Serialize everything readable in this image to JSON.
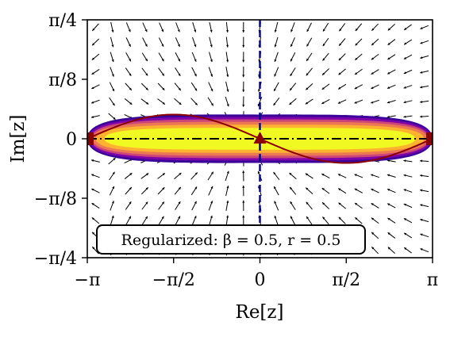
{
  "chart_data": {
    "type": "scatter",
    "title": "",
    "xlabel": "Re[z]",
    "ylabel": "Im[z]",
    "xlim": [
      -3.14159,
      3.14159
    ],
    "ylim": [
      -0.7854,
      0.7854
    ],
    "x_ticks": [
      {
        "value": -3.14159,
        "label": "−π"
      },
      {
        "value": -1.5708,
        "label": "−π/2"
      },
      {
        "value": 0,
        "label": "0"
      },
      {
        "value": 1.5708,
        "label": "π/2"
      },
      {
        "value": 3.14159,
        "label": "π"
      }
    ],
    "y_ticks": [
      {
        "value": 0.7854,
        "label": "π/4"
      },
      {
        "value": 0.3927,
        "label": "π/8"
      },
      {
        "value": 0,
        "label": "0"
      },
      {
        "value": -0.3927,
        "label": "−π/8"
      },
      {
        "value": -0.7854,
        "label": "−π/4"
      }
    ],
    "annotation": "Regularized: β = 0.5, r = 0.5",
    "density": {
      "description_colormap": "plasma",
      "center": [
        0,
        0
      ],
      "half_width_re": 3.14159,
      "half_height_im": 0.16,
      "colors": [
        "#f0f921",
        "#fdb32f",
        "#ed7953",
        "#cc4778",
        "#7e03a8",
        "#3a049a"
      ]
    },
    "sine_curve": {
      "amplitude": 0.16,
      "color": "#8b0000",
      "x_start": -3.14159,
      "x_end": 3.14159
    },
    "markers": [
      {
        "x": -3.14159,
        "y": 0,
        "shape": "square",
        "color": "#8b0000"
      },
      {
        "x": 0,
        "y": 0,
        "shape": "triangle",
        "color": "#8b0000"
      },
      {
        "x": 3.14159,
        "y": 0,
        "shape": "square",
        "color": "#8b0000"
      }
    ],
    "hline": {
      "y": 0,
      "style": "dash-dot",
      "color": "#000000"
    },
    "vline": {
      "x": 0,
      "style": "dashed",
      "color": "#00008b"
    },
    "quiver": {
      "nx": 21,
      "ny": 16,
      "color": "#000000"
    }
  }
}
